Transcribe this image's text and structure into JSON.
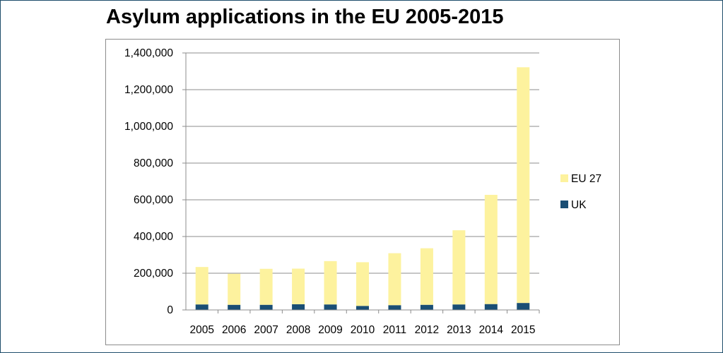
{
  "chart_data": {
    "type": "bar",
    "stacked": true,
    "title": "Asylum applications in the EU 2005-2015",
    "categories": [
      "2005",
      "2006",
      "2007",
      "2008",
      "2009",
      "2010",
      "2011",
      "2012",
      "2013",
      "2014",
      "2015"
    ],
    "series": [
      {
        "name": "UK",
        "color": "#1a4e74",
        "values": [
          30000,
          28000,
          28000,
          31000,
          30000,
          22000,
          26000,
          28000,
          30000,
          32000,
          38000
        ]
      },
      {
        "name": "EU 27",
        "color": "#fdf29e",
        "values": [
          204000,
          169000,
          196000,
          194000,
          236000,
          238000,
          283000,
          308000,
          404000,
          595000,
          1284000
        ]
      }
    ],
    "ylim": [
      0,
      1400000
    ],
    "yticks": [
      0,
      200000,
      400000,
      600000,
      800000,
      1000000,
      1200000,
      1400000
    ],
    "ytick_labels": [
      "0",
      "200,000",
      "400,000",
      "600,000",
      "800,000",
      "1,000,000",
      "1,200,000",
      "1,400,000"
    ],
    "grid": true,
    "legend_position": "right",
    "legend": [
      "EU 27",
      "UK"
    ]
  }
}
